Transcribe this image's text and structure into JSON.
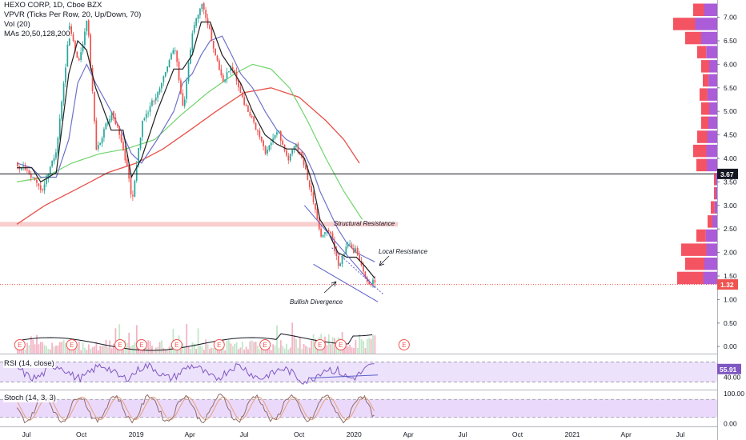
{
  "legend": {
    "symbol": "HEXO CORP, 1D, Cboe BZX",
    "vpvr": "VPVR (Ticks Per Row, 20, Up/Down, 70)",
    "vol": "Vol (20)",
    "mas": "MAs 20,50,128,200",
    "rsi": "RSI (14, close)",
    "stoch": "Stoch (14, 3, 3)"
  },
  "colors": {
    "up": "#26a69a",
    "down": "#ef5350",
    "vol_up": "#c3e6c9",
    "vol_down": "#f3b3c4",
    "ma20": "#1f1f1f",
    "ma50": "#6f72c9",
    "ma128": "#6fd36b",
    "ma200": "#e8524a",
    "support_line": "#131722",
    "last_price": "#ef5350",
    "zone": "#f7c6c6",
    "trend": "#5b5ec9",
    "rsi_line": "#7e57c2",
    "rsi_band": "#ede2fb",
    "stoch_k": "#8e6c6c",
    "stoch_d": "#e8a07a",
    "stoch_band": "#ead9fb",
    "vpvr_up": "#9c3fd1",
    "vpvr_down": "#f23645",
    "earnings": "#ef5350"
  },
  "chart_data": [
    {
      "type": "candlestick",
      "title": "HEXO CORP, 1D, Cboe BZX",
      "x_ticks": [
        "Jul",
        "Oct",
        "2019",
        "Apr",
        "Jul",
        "Oct",
        "2020",
        "Apr",
        "Jul",
        "Oct",
        "2021",
        "Apr",
        "Jul"
      ],
      "y_ticks": [
        "7.00",
        "6.50",
        "6.00",
        "5.50",
        "5.00",
        "4.50",
        "4.00",
        "3.50",
        "3.00",
        "2.50",
        "2.00",
        "1.50",
        "1.00",
        "0.50",
        "0.00"
      ],
      "ylim": [
        -0.15,
        7.35
      ],
      "price_path_x": [
        "2018-06-15",
        "2018-07-10",
        "2018-07-25",
        "2018-08-20",
        "2018-09-10",
        "2018-09-25",
        "2018-10-10",
        "2018-10-25",
        "2018-11-20",
        "2018-12-10",
        "2018-12-24",
        "2019-01-10",
        "2019-02-05",
        "2019-03-05",
        "2019-03-20",
        "2019-04-05",
        "2019-04-20",
        "2019-05-05",
        "2019-05-25",
        "2019-06-10",
        "2019-06-25",
        "2019-07-15",
        "2019-08-05",
        "2019-08-25",
        "2019-09-10",
        "2019-09-25",
        "2019-10-10",
        "2019-10-25",
        "2019-11-05",
        "2019-11-20",
        "2019-12-05",
        "2019-12-20",
        "2020-01-05",
        "2020-01-20",
        "2020-02-05"
      ],
      "price_path_y": [
        3.9,
        3.6,
        3.3,
        4.2,
        6.8,
        6.0,
        7.0,
        4.2,
        5.0,
        4.2,
        3.1,
        4.8,
        5.4,
        6.4,
        5.0,
        6.8,
        7.3,
        6.6,
        5.6,
        6.0,
        5.3,
        4.8,
        4.1,
        4.6,
        4.0,
        4.3,
        3.8,
        3.0,
        2.3,
        2.5,
        1.7,
        2.2,
        2.0,
        1.4,
        1.32
      ],
      "ma20_y": [
        3.8,
        3.8,
        3.5,
        3.7,
        5.8,
        6.5,
        6.3,
        5.5,
        4.6,
        4.6,
        3.6,
        4.0,
        5.0,
        5.9,
        5.9,
        6.2,
        6.9,
        6.9,
        6.2,
        5.9,
        5.6,
        5.0,
        4.5,
        4.3,
        4.2,
        4.2,
        4.0,
        3.4,
        2.7,
        2.4,
        2.0,
        1.9,
        1.9,
        1.7,
        1.45
      ],
      "ma50_y": [
        3.9,
        3.8,
        3.6,
        3.6,
        4.4,
        5.6,
        6.0,
        5.6,
        5.0,
        4.5,
        4.1,
        3.9,
        4.4,
        5.0,
        5.6,
        5.8,
        6.2,
        6.5,
        6.6,
        6.2,
        5.8,
        5.5,
        5.0,
        4.6,
        4.4,
        4.3,
        4.1,
        3.7,
        3.3,
        2.9,
        2.5,
        2.2,
        2.0,
        1.9,
        1.8
      ],
      "ma128_x": [
        "2018-06-15",
        "2018-08-01",
        "2018-09-15",
        "2018-11-01",
        "2018-12-15",
        "2019-02-01",
        "2019-03-15",
        "2019-05-01",
        "2019-06-15",
        "2019-07-15",
        "2019-08-15",
        "2019-09-15",
        "2019-10-15",
        "2019-11-15",
        "2019-12-15",
        "2020-01-15"
      ],
      "ma128_y": [
        3.5,
        3.6,
        3.9,
        4.1,
        4.2,
        4.4,
        4.9,
        5.4,
        5.8,
        6.0,
        5.9,
        5.5,
        4.8,
        4.0,
        3.3,
        2.7
      ],
      "ma200_x": [
        "2018-06-15",
        "2018-08-01",
        "2018-10-01",
        "2018-11-15",
        "2019-01-01",
        "2019-02-15",
        "2019-04-01",
        "2019-05-15",
        "2019-07-01",
        "2019-08-15",
        "2019-10-01",
        "2019-11-15",
        "2019-12-15",
        "2020-01-10"
      ],
      "ma200_y": [
        2.6,
        3.0,
        3.4,
        3.7,
        3.9,
        4.2,
        4.6,
        5.0,
        5.4,
        5.5,
        5.3,
        4.8,
        4.4,
        3.9
      ],
      "horizontal_line": 3.67,
      "horizontal_line_label": "3.67",
      "last_price": 1.32,
      "last_price_label": "1.32",
      "zone": [
        2.55,
        2.65
      ],
      "trendlines": [
        {
          "x": [
            "2019-10-10",
            "2020-02-05"
          ],
          "y": [
            3.0,
            1.25
          ]
        },
        {
          "x": [
            "2019-10-25",
            "2020-02-10"
          ],
          "y": [
            1.75,
            0.95
          ]
        },
        {
          "x": [
            "2019-11-25",
            "2020-02-20"
          ],
          "y": [
            2.1,
            1.1
          ]
        }
      ],
      "volume_scale": [
        0,
        1
      ]
    },
    {
      "type": "line",
      "title": "RSI (14, close)",
      "last_value": 55.91,
      "last_value_label": "55.91",
      "y_ticks": [
        "40.00"
      ],
      "band": [
        30,
        70
      ],
      "ylim": [
        15,
        85
      ]
    },
    {
      "type": "line",
      "title": "Stoch (14, 3, 3)",
      "y_ticks": [
        "100.00",
        "0.00"
      ],
      "band": [
        20,
        80
      ],
      "ylim": [
        -10,
        110
      ]
    }
  ],
  "annotations": {
    "structural_resistance": "Structural Resistance",
    "local_resistance": "Local Resistance",
    "bullish_divergence": "Bullish Divergence"
  },
  "earnings_marker": "E",
  "earnings_dates": [
    "2018-06-20",
    "2018-09-15",
    "2018-12-05",
    "2019-01-10",
    "2019-03-10",
    "2019-05-20",
    "2019-08-05",
    "2019-11-05",
    "2019-12-10",
    "2020-03-25"
  ]
}
